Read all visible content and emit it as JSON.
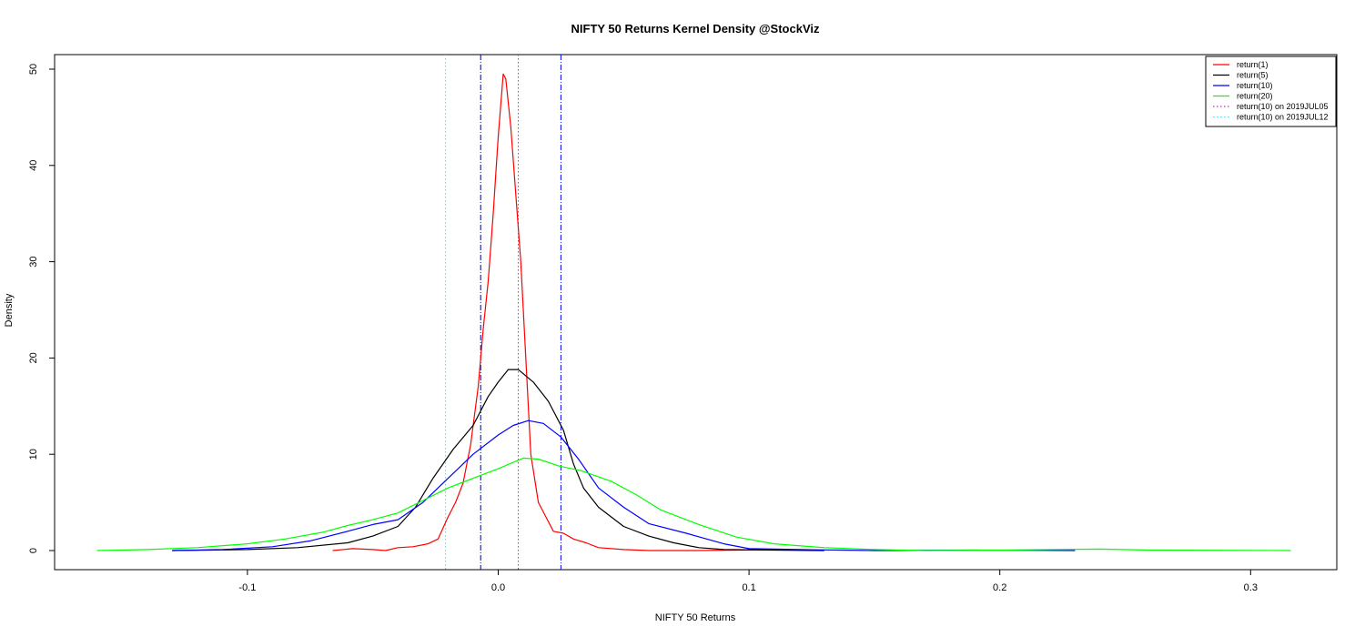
{
  "chart_data": {
    "type": "line",
    "title": "NIFTY 50 Returns Kernel Density @StockViz",
    "xlabel": "NIFTY 50 Returns",
    "ylabel": "Density",
    "xlim": [
      -0.16,
      0.316
    ],
    "ylim": [
      0,
      50
    ],
    "x_ticks": [
      -0.1,
      0.0,
      0.1,
      0.2,
      0.3
    ],
    "x_tick_labels": [
      "-0.1",
      "0.0",
      "0.1",
      "0.2",
      "0.3"
    ],
    "y_ticks": [
      0,
      10,
      20,
      30,
      40,
      50
    ],
    "y_tick_labels": [
      "0",
      "10",
      "20",
      "30",
      "40",
      "50"
    ],
    "legend_position": "top-right",
    "grid": false,
    "series": [
      {
        "name": "return(1)",
        "color": "#ff0000",
        "style": "solid",
        "points": [
          [
            -0.066,
            0.0
          ],
          [
            -0.058,
            0.2
          ],
          [
            -0.05,
            0.1
          ],
          [
            -0.045,
            0.0
          ],
          [
            -0.04,
            0.3
          ],
          [
            -0.034,
            0.4
          ],
          [
            -0.028,
            0.7
          ],
          [
            -0.024,
            1.2
          ],
          [
            -0.02,
            3.5
          ],
          [
            -0.017,
            5.0
          ],
          [
            -0.014,
            7.0
          ],
          [
            -0.011,
            11.0
          ],
          [
            -0.008,
            17.0
          ],
          [
            -0.006,
            23.0
          ],
          [
            -0.004,
            28.0
          ],
          [
            -0.002,
            35.0
          ],
          [
            0.0,
            43.0
          ],
          [
            0.002,
            49.5
          ],
          [
            0.003,
            49.0
          ],
          [
            0.005,
            44.0
          ],
          [
            0.007,
            37.0
          ],
          [
            0.009,
            30.0
          ],
          [
            0.011,
            20.0
          ],
          [
            0.013,
            10.0
          ],
          [
            0.016,
            5.0
          ],
          [
            0.019,
            3.5
          ],
          [
            0.022,
            2.0
          ],
          [
            0.026,
            1.8
          ],
          [
            0.03,
            1.2
          ],
          [
            0.035,
            0.8
          ],
          [
            0.04,
            0.3
          ],
          [
            0.05,
            0.1
          ],
          [
            0.06,
            0.0
          ],
          [
            0.08,
            0.0
          ],
          [
            0.11,
            0.1
          ]
        ]
      },
      {
        "name": "return(5)",
        "color": "#000000",
        "style": "solid",
        "points": [
          [
            -0.13,
            0.0
          ],
          [
            -0.1,
            0.1
          ],
          [
            -0.08,
            0.3
          ],
          [
            -0.06,
            0.8
          ],
          [
            -0.05,
            1.5
          ],
          [
            -0.04,
            2.5
          ],
          [
            -0.033,
            4.5
          ],
          [
            -0.026,
            7.5
          ],
          [
            -0.018,
            10.5
          ],
          [
            -0.01,
            13.0
          ],
          [
            -0.004,
            16.0
          ],
          [
            0.0,
            17.5
          ],
          [
            0.004,
            18.8
          ],
          [
            0.008,
            18.8
          ],
          [
            0.014,
            17.5
          ],
          [
            0.02,
            15.5
          ],
          [
            0.026,
            12.5
          ],
          [
            0.03,
            9.0
          ],
          [
            0.034,
            6.5
          ],
          [
            0.04,
            4.5
          ],
          [
            0.05,
            2.5
          ],
          [
            0.06,
            1.5
          ],
          [
            0.07,
            0.8
          ],
          [
            0.08,
            0.3
          ],
          [
            0.09,
            0.1
          ],
          [
            0.11,
            0.05
          ],
          [
            0.13,
            0.0
          ]
        ]
      },
      {
        "name": "return(10)",
        "color": "#0000ff",
        "style": "solid",
        "points": [
          [
            -0.13,
            0.0
          ],
          [
            -0.11,
            0.1
          ],
          [
            -0.09,
            0.4
          ],
          [
            -0.075,
            1.0
          ],
          [
            -0.06,
            2.0
          ],
          [
            -0.05,
            2.7
          ],
          [
            -0.04,
            3.2
          ],
          [
            -0.03,
            5.0
          ],
          [
            -0.02,
            7.5
          ],
          [
            -0.01,
            10.0
          ],
          [
            0.0,
            12.0
          ],
          [
            0.006,
            13.0
          ],
          [
            0.012,
            13.5
          ],
          [
            0.018,
            13.2
          ],
          [
            0.025,
            11.8
          ],
          [
            0.032,
            9.5
          ],
          [
            0.04,
            6.5
          ],
          [
            0.05,
            4.5
          ],
          [
            0.06,
            2.8
          ],
          [
            0.075,
            1.8
          ],
          [
            0.09,
            0.7
          ],
          [
            0.1,
            0.2
          ],
          [
            0.12,
            0.1
          ],
          [
            0.15,
            0.0
          ],
          [
            0.19,
            0.05
          ],
          [
            0.23,
            0.0
          ]
        ]
      },
      {
        "name": "return(20)",
        "color": "#00ff00",
        "style": "solid",
        "points": [
          [
            -0.16,
            0.0
          ],
          [
            -0.14,
            0.1
          ],
          [
            -0.12,
            0.3
          ],
          [
            -0.1,
            0.7
          ],
          [
            -0.085,
            1.2
          ],
          [
            -0.07,
            1.9
          ],
          [
            -0.06,
            2.6
          ],
          [
            -0.05,
            3.2
          ],
          [
            -0.04,
            3.9
          ],
          [
            -0.03,
            5.2
          ],
          [
            -0.02,
            6.5
          ],
          [
            -0.01,
            7.5
          ],
          [
            0.0,
            8.5
          ],
          [
            0.01,
            9.6
          ],
          [
            0.016,
            9.5
          ],
          [
            0.024,
            8.8
          ],
          [
            0.033,
            8.3
          ],
          [
            0.045,
            7.2
          ],
          [
            0.055,
            5.8
          ],
          [
            0.065,
            4.2
          ],
          [
            0.08,
            2.7
          ],
          [
            0.095,
            1.4
          ],
          [
            0.11,
            0.7
          ],
          [
            0.13,
            0.3
          ],
          [
            0.15,
            0.1
          ],
          [
            0.17,
            0.0
          ],
          [
            0.2,
            0.05
          ],
          [
            0.24,
            0.15
          ],
          [
            0.26,
            0.05
          ],
          [
            0.316,
            0.0
          ]
        ]
      },
      {
        "name": "return(10) on 2019JUL05",
        "color": "#ff00ff",
        "style": "dotted",
        "legend_only": true,
        "points": []
      },
      {
        "name": "return(10) on 2019JUL12",
        "color": "#00ffff",
        "style": "dotted",
        "legend_only": true,
        "points": []
      }
    ],
    "vlines": [
      {
        "x": -0.007,
        "color": "#00008b",
        "style": "dashdot"
      },
      {
        "x": 0.025,
        "color": "#0000ff",
        "style": "dashdot"
      },
      {
        "x": 0.008,
        "color": "#ff00ff",
        "style": "dotted"
      },
      {
        "x": -0.021,
        "color": "#00ffff",
        "style": "dotted"
      }
    ]
  }
}
